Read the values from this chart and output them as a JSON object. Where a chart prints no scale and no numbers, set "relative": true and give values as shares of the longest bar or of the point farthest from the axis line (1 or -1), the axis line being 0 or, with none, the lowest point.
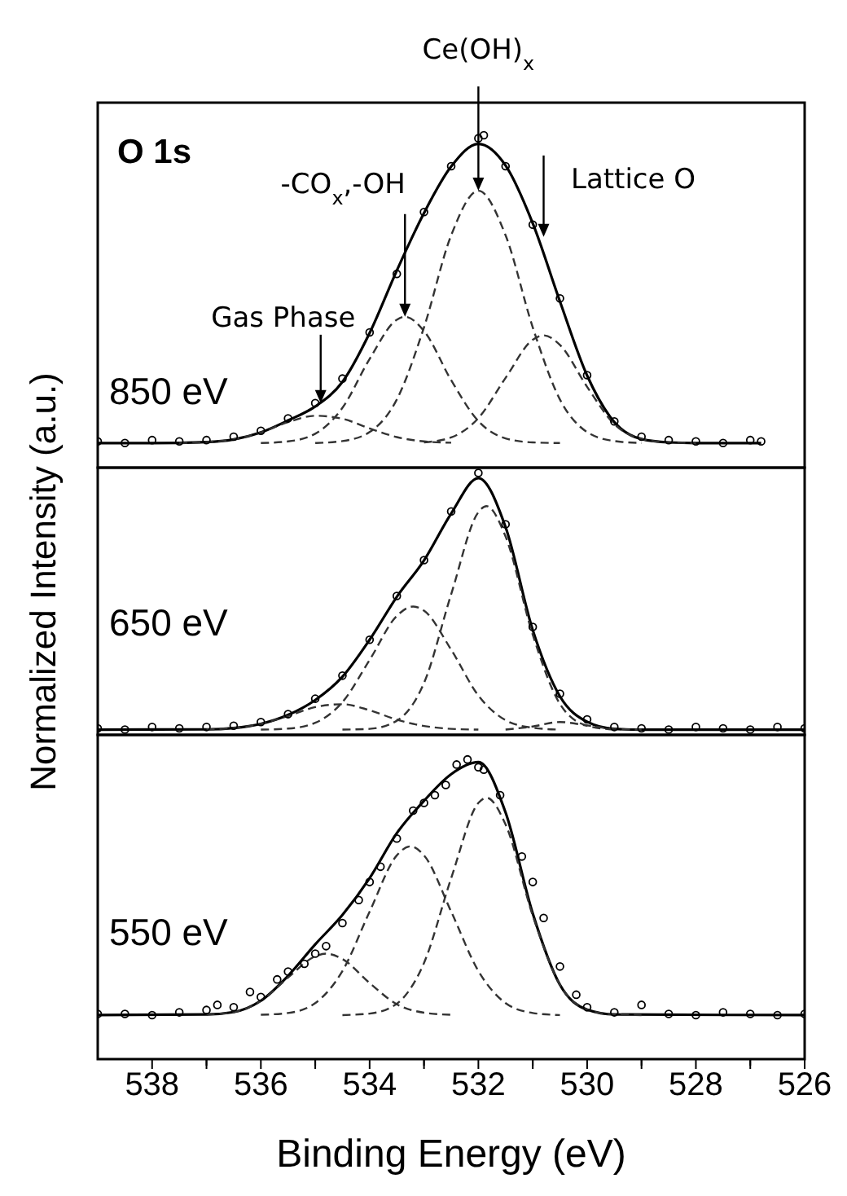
{
  "chart_data": [
    {
      "type": "line",
      "relative": true,
      "xlim": [
        539,
        526
      ],
      "tick_labels": false,
      "annotations": [
        "O 1s",
        "850 eV",
        {
          "text": "Gas Phase",
          "x": 534.9,
          "y": 0.194
        },
        {
          "text": "-CO$_{x}$,-OH",
          "x": 533.35,
          "y": 0.454
        },
        {
          "text": "Ce(OH)$_{x}$",
          "x": 532.0,
          "y": 0.833
        },
        {
          "text": "Lattice O",
          "x": 530.8,
          "y": 0.694
        }
      ],
      "series": [
        {
          "type": "scatter",
          "marker": "circle",
          "color": "#000000",
          "x": [
            539,
            538.5,
            538,
            537.5,
            537,
            536.5,
            536,
            535.5,
            535,
            534.5,
            534,
            533.5,
            533,
            532.5,
            532,
            531.9,
            531.5,
            531,
            530.5,
            530,
            529.5,
            529,
            528.5,
            528,
            527.5,
            527,
            526.8
          ],
          "values": [
            0.079,
            0.074,
            0.083,
            0.079,
            0.083,
            0.093,
            0.111,
            0.148,
            0.194,
            0.268,
            0.407,
            0.583,
            0.769,
            0.907,
            0.991,
            1,
            0.907,
            0.731,
            0.509,
            0.278,
            0.139,
            0.093,
            0.083,
            0.079,
            0.074,
            0.083,
            0.079
          ]
        },
        {
          "type": "line",
          "line_style": "solid",
          "color": "#000000",
          "x": [
            539,
            538,
            537,
            536.5,
            536,
            535.5,
            535,
            534.5,
            534,
            533.5,
            533,
            532.5,
            532,
            531.5,
            531,
            530.5,
            530,
            529.5,
            529,
            528.5,
            528,
            526.8
          ],
          "values": [
            0.074,
            0.074,
            0.077,
            0.085,
            0.106,
            0.142,
            0.184,
            0.258,
            0.405,
            0.593,
            0.766,
            0.906,
            0.974,
            0.909,
            0.735,
            0.5,
            0.277,
            0.137,
            0.086,
            0.076,
            0.074,
            0.074
          ]
        },
        {
          "type": "line",
          "line_style": "dashed",
          "color": "#333333",
          "x": [
            537.5,
            537,
            536.5,
            536,
            535.5,
            535,
            534.5,
            534,
            533.5,
            533,
            532.5
          ],
          "values": [
            0.074,
            0.077,
            0.085,
            0.106,
            0.137,
            0.156,
            0.147,
            0.118,
            0.092,
            0.079,
            0.075
          ]
        },
        {
          "type": "line",
          "line_style": "dashed",
          "color": "#333333",
          "x": [
            536,
            535.5,
            535,
            534.5,
            534,
            533.5,
            533.35,
            533,
            532.5,
            532,
            531.5,
            531,
            530.5
          ],
          "values": [
            0.074,
            0.079,
            0.102,
            0.18,
            0.327,
            0.445,
            0.454,
            0.411,
            0.263,
            0.14,
            0.088,
            0.076,
            0.074
          ]
        },
        {
          "type": "line",
          "line_style": "dashed",
          "color": "#333333",
          "x": [
            535,
            534.5,
            534,
            533.5,
            533,
            532.5,
            532,
            531.5,
            531,
            530.5,
            530,
            529.5,
            529
          ],
          "values": [
            0.074,
            0.08,
            0.107,
            0.205,
            0.422,
            0.699,
            0.833,
            0.699,
            0.422,
            0.205,
            0.107,
            0.08,
            0.074
          ]
        },
        {
          "type": "line",
          "line_style": "dashed",
          "color": "#333333",
          "x": [
            533,
            532.5,
            532,
            531.5,
            531,
            530.8,
            530.5,
            530,
            529.5,
            529,
            528.5,
            528
          ],
          "values": [
            0.076,
            0.091,
            0.149,
            0.27,
            0.385,
            0.398,
            0.369,
            0.243,
            0.131,
            0.086,
            0.076,
            0.074
          ]
        }
      ]
    },
    {
      "type": "line",
      "relative": true,
      "xlim": [
        539,
        526
      ],
      "tick_labels": false,
      "ylabel": "Normalized Intensity (a.u.)",
      "annotations": [
        "650 eV"
      ],
      "series": [
        {
          "type": "scatter",
          "marker": "circle",
          "color": "#000000",
          "x": [
            539,
            538.5,
            538,
            537.5,
            537,
            536.5,
            536,
            535.5,
            535,
            534.5,
            534,
            533.5,
            533,
            532.5,
            532,
            531.5,
            531,
            530.5,
            530,
            529.5,
            529,
            528.5,
            528,
            527.5,
            527,
            526.5,
            526
          ],
          "values": [
            0.025,
            0.02,
            0.03,
            0.025,
            0.03,
            0.035,
            0.049,
            0.079,
            0.138,
            0.226,
            0.363,
            0.53,
            0.667,
            0.853,
            1,
            0.804,
            0.412,
            0.157,
            0.059,
            0.03,
            0.025,
            0.02,
            0.03,
            0.025,
            0.02,
            0.03,
            0.025
          ]
        },
        {
          "type": "line",
          "line_style": "solid",
          "color": "#000000",
          "x": [
            539,
            537,
            536.5,
            536,
            535.5,
            535,
            534.5,
            534,
            533.5,
            533,
            532.5,
            532,
            531.5,
            531,
            530.5,
            530,
            529.5,
            529,
            526
          ],
          "values": [
            0.02,
            0.021,
            0.026,
            0.042,
            0.076,
            0.133,
            0.222,
            0.363,
            0.527,
            0.666,
            0.845,
            0.98,
            0.793,
            0.4,
            0.147,
            0.05,
            0.023,
            0.02,
            0.02
          ]
        },
        {
          "type": "line",
          "line_style": "dashed",
          "color": "#333333",
          "x": [
            537,
            536.5,
            536,
            535.5,
            535,
            534.5,
            534,
            533.5,
            533,
            532.5,
            532
          ],
          "values": [
            0.021,
            0.026,
            0.042,
            0.072,
            0.106,
            0.117,
            0.094,
            0.058,
            0.034,
            0.023,
            0.02
          ]
        },
        {
          "type": "line",
          "line_style": "dashed",
          "color": "#333333",
          "x": [
            536,
            535.5,
            535,
            534.5,
            534,
            533.5,
            533.2,
            533,
            532.5,
            532,
            531.5,
            531,
            530.5
          ],
          "values": [
            0.02,
            0.024,
            0.046,
            0.125,
            0.286,
            0.454,
            0.49,
            0.474,
            0.325,
            0.15,
            0.056,
            0.027,
            0.02
          ]
        },
        {
          "type": "line",
          "line_style": "dashed",
          "color": "#333333",
          "x": [
            534.5,
            534,
            533.5,
            533,
            532.5,
            532,
            531.85,
            531.5,
            531,
            530.5,
            530,
            529.5
          ],
          "values": [
            0.02,
            0.023,
            0.054,
            0.198,
            0.537,
            0.85,
            0.873,
            0.757,
            0.382,
            0.118,
            0.035,
            0.02
          ]
        },
        {
          "type": "line",
          "line_style": "dashed",
          "color": "#333333",
          "x": [
            531.5,
            531,
            530.5,
            530,
            529.5,
            529
          ],
          "values": [
            0.02,
            0.032,
            0.049,
            0.036,
            0.023,
            0.02
          ]
        }
      ]
    },
    {
      "type": "line",
      "relative": true,
      "xlim": [
        539,
        526
      ],
      "xticks": [
        538,
        {
          "value": 537,
          "label": null
        },
        536,
        {
          "value": 535,
          "label": null
        },
        534,
        {
          "value": 533,
          "label": null
        },
        532,
        {
          "value": 531,
          "label": null
        },
        530,
        {
          "value": 529,
          "label": null
        },
        528,
        {
          "value": 527,
          "label": null
        },
        526
      ],
      "tick_labels": "x",
      "xlabel": "Binding Energy (eV)",
      "annotations": [
        "550 eV"
      ],
      "series": [
        {
          "type": "scatter",
          "marker": "circle",
          "color": "#000000",
          "x": [
            539,
            538.5,
            538,
            537.5,
            537,
            536.8,
            536.5,
            536.2,
            536,
            535.7,
            535.5,
            535.2,
            535,
            534.8,
            534.5,
            534.2,
            534,
            533.8,
            533.5,
            533.2,
            533,
            532.8,
            532.6,
            532.4,
            532.2,
            532,
            531.9,
            531.6,
            531.2,
            531,
            530.8,
            530.5,
            530.2,
            530,
            529.5,
            529,
            528.5,
            528,
            527.5,
            527,
            526.5,
            526
          ],
          "values": [
            0.151,
            0.151,
            0.147,
            0.156,
            0.164,
            0.181,
            0.173,
            0.224,
            0.207,
            0.266,
            0.292,
            0.318,
            0.352,
            0.377,
            0.454,
            0.531,
            0.591,
            0.642,
            0.736,
            0.829,
            0.855,
            0.881,
            0.915,
            0.983,
            1,
            0.974,
            0.966,
            0.881,
            0.676,
            0.591,
            0.471,
            0.309,
            0.215,
            0.173,
            0.156,
            0.181,
            0.151,
            0.147,
            0.156,
            0.151,
            0.147,
            0.151
          ]
        },
        {
          "type": "line",
          "line_style": "solid",
          "color": "#000000",
          "x": [
            539,
            537,
            536.5,
            536,
            535.5,
            535,
            534.5,
            534,
            533.5,
            533,
            532.5,
            532,
            531.5,
            531,
            530.5,
            530,
            529.5,
            526
          ],
          "values": [
            0.147,
            0.149,
            0.157,
            0.195,
            0.278,
            0.383,
            0.481,
            0.604,
            0.754,
            0.862,
            0.951,
            0.991,
            0.823,
            0.486,
            0.248,
            0.165,
            0.149,
            0.147
          ]
        },
        {
          "type": "line",
          "line_style": "dashed",
          "color": "#333333",
          "x": [
            537,
            536.5,
            536,
            535.5,
            535,
            534.8,
            534.5,
            534,
            533.5,
            533,
            532.5
          ],
          "values": [
            0.149,
            0.157,
            0.194,
            0.272,
            0.343,
            0.352,
            0.334,
            0.254,
            0.183,
            0.155,
            0.148
          ]
        },
        {
          "type": "line",
          "line_style": "dashed",
          "color": "#333333",
          "x": [
            536,
            535.5,
            535,
            534.5,
            534,
            533.5,
            533.25,
            533,
            532.5,
            532,
            531.5,
            531,
            530.5
          ],
          "values": [
            0.148,
            0.154,
            0.187,
            0.294,
            0.492,
            0.68,
            0.71,
            0.68,
            0.492,
            0.294,
            0.187,
            0.154,
            0.147
          ]
        },
        {
          "type": "line",
          "line_style": "dashed",
          "color": "#333333",
          "x": [
            534.5,
            534,
            533.5,
            533,
            532.5,
            532,
            531.85,
            531.5,
            531,
            530.5,
            530,
            529.5,
            529
          ],
          "values": [
            0.147,
            0.152,
            0.185,
            0.321,
            0.604,
            0.855,
            0.872,
            0.783,
            0.479,
            0.248,
            0.165,
            0.149,
            0.147
          ]
        }
      ]
    }
  ]
}
